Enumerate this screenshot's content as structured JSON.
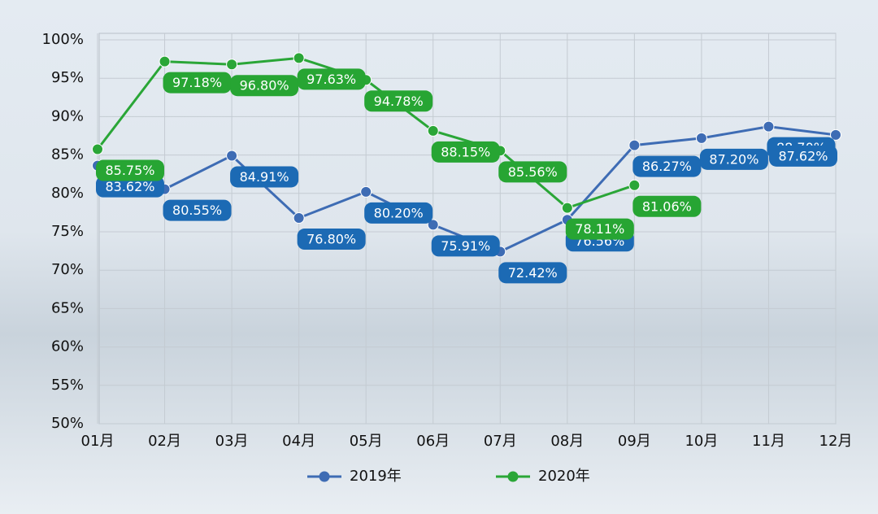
{
  "chart_data": {
    "type": "line",
    "categories": [
      "01月",
      "02月",
      "03月",
      "04月",
      "05月",
      "06月",
      "07月",
      "08月",
      "09月",
      "10月",
      "11月",
      "12月"
    ],
    "series": [
      {
        "name": "2019年",
        "color": "#3e6cb4",
        "label_color": "#1c6ab4",
        "values": [
          83.62,
          80.55,
          84.91,
          76.8,
          80.2,
          75.91,
          72.42,
          76.56,
          86.27,
          87.2,
          88.7,
          87.62
        ],
        "value_labels": [
          "83.62%",
          "80.55%",
          "84.91%",
          "76.80%",
          "80.20%",
          "75.91%",
          "72.42%",
          "76.56%",
          "86.27%",
          "87.20%",
          "88.70%",
          "87.62%"
        ]
      },
      {
        "name": "2020年",
        "color": "#2aa637",
        "label_color": "#27a533",
        "values": [
          85.75,
          97.18,
          96.8,
          97.63,
          94.78,
          88.15,
          85.56,
          78.11,
          81.06,
          null,
          null,
          null
        ],
        "value_labels": [
          "85.75%",
          "97.18%",
          "96.80%",
          "97.63%",
          "94.78%",
          "88.15%",
          "85.56%",
          "78.11%",
          "81.06%",
          null,
          null,
          null
        ]
      }
    ],
    "ylim": [
      50,
      100
    ],
    "yticks": [
      {
        "value": 50,
        "label": "50%"
      },
      {
        "value": 55,
        "label": "55%"
      },
      {
        "value": 60,
        "label": "60%"
      },
      {
        "value": 65,
        "label": "65%"
      },
      {
        "value": 70,
        "label": "70%"
      },
      {
        "value": 75,
        "label": "75%"
      },
      {
        "value": 80,
        "label": "80%"
      },
      {
        "value": 85,
        "label": "85%"
      },
      {
        "value": 90,
        "label": "90%"
      },
      {
        "value": 95,
        "label": "95%"
      },
      {
        "value": 100,
        "label": "100%"
      }
    ],
    "grid": true
  }
}
